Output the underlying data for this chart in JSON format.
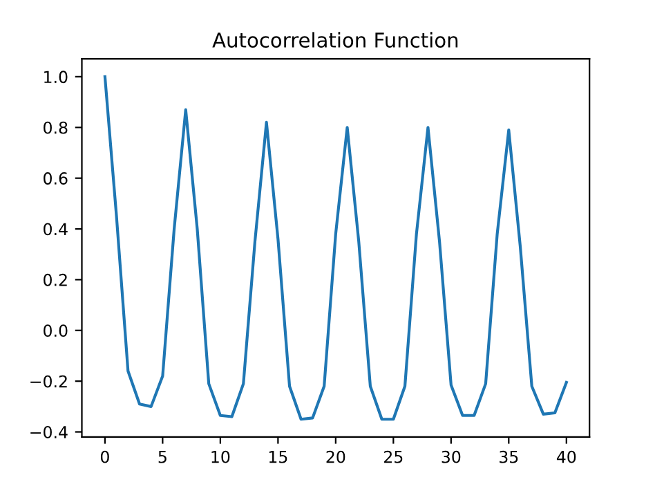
{
  "chart_data": {
    "type": "line",
    "title": "Autocorrelation Function",
    "x": [
      0,
      1,
      2,
      3,
      4,
      5,
      6,
      7,
      8,
      9,
      10,
      11,
      12,
      13,
      14,
      15,
      16,
      17,
      18,
      19,
      20,
      21,
      22,
      23,
      24,
      25,
      26,
      27,
      28,
      29,
      30,
      31,
      32,
      33,
      34,
      35,
      36,
      37,
      38,
      39,
      40
    ],
    "series": [
      {
        "color": "#1f77b4",
        "values": [
          1.0,
          0.45,
          -0.16,
          -0.29,
          -0.3,
          -0.18,
          0.4,
          0.87,
          0.4,
          -0.21,
          -0.335,
          -0.34,
          -0.21,
          0.35,
          0.82,
          0.36,
          -0.22,
          -0.35,
          -0.345,
          -0.22,
          0.38,
          0.8,
          0.35,
          -0.22,
          -0.35,
          -0.35,
          -0.22,
          0.38,
          0.8,
          0.35,
          -0.215,
          -0.335,
          -0.335,
          -0.21,
          0.38,
          0.79,
          0.33,
          -0.22,
          -0.33,
          -0.325,
          -0.205
        ]
      }
    ],
    "xlim": [
      -2,
      42
    ],
    "ylim": [
      -0.42,
      1.07
    ],
    "xticks": [
      0,
      5,
      10,
      15,
      20,
      25,
      30,
      35,
      40
    ],
    "yticks": [
      {
        "value": -0.4,
        "label": "−0.4"
      },
      {
        "value": -0.2,
        "label": "−0.2"
      },
      {
        "value": 0.0,
        "label": "0.0"
      },
      {
        "value": 0.2,
        "label": "0.2"
      },
      {
        "value": 0.4,
        "label": "0.4"
      },
      {
        "value": 0.6,
        "label": "0.6"
      },
      {
        "value": 0.8,
        "label": "0.8"
      },
      {
        "value": 1.0,
        "label": "1.0"
      }
    ],
    "grid": false
  }
}
